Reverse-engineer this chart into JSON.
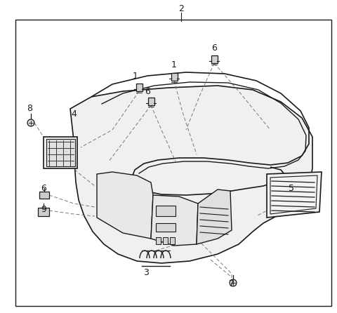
{
  "bg_color": "#ffffff",
  "border_color": "#000000",
  "line_color": "#1a1a1a",
  "dashed_color": "#555555",
  "figsize": [
    4.8,
    4.46
  ],
  "dpi": 100,
  "border": [
    22,
    28,
    450,
    408
  ],
  "part_labels": [
    [
      "2",
      258,
      12
    ],
    [
      "1",
      193,
      108
    ],
    [
      "1",
      248,
      93
    ],
    [
      "6",
      210,
      130
    ],
    [
      "6",
      305,
      68
    ],
    [
      "8",
      42,
      155
    ],
    [
      "4",
      105,
      163
    ],
    [
      "5",
      415,
      268
    ],
    [
      "3",
      208,
      388
    ],
    [
      "6",
      62,
      268
    ],
    [
      "9",
      62,
      298
    ],
    [
      "7",
      330,
      405
    ]
  ]
}
